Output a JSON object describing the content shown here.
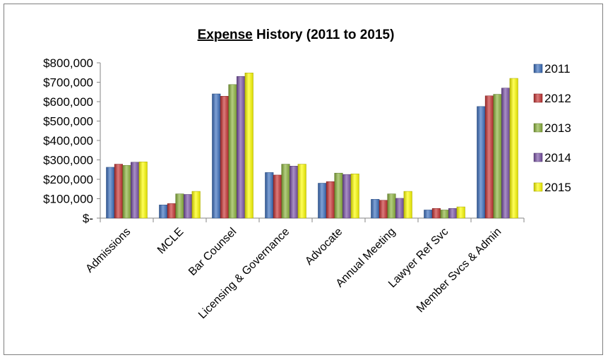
{
  "chart_data": {
    "type": "bar",
    "title_prefix": "Expense",
    "title_rest": " History (2011 to 2015)",
    "categories": [
      "Admissions",
      "MCLE",
      "Bar Counsel",
      "Licensing & Governance",
      "Advocate",
      "Annual Meeting",
      "Lawyer Ref Svc",
      "Member Svcs & Admin"
    ],
    "y_tick_labels": [
      "$-",
      "$100,000",
      "$200,000",
      "$300,000",
      "$400,000",
      "$500,000",
      "$600,000",
      "$700,000",
      "$800,000"
    ],
    "ylim": [
      0,
      800000
    ],
    "legend_position": "right",
    "grid": false,
    "series": [
      {
        "name": "2011",
        "color": "#3a6fbf",
        "values": [
          262000,
          68000,
          640000,
          235000,
          180000,
          97000,
          42000,
          575000
        ]
      },
      {
        "name": "2012",
        "color": "#c83232",
        "values": [
          278000,
          75000,
          628000,
          222000,
          188000,
          92000,
          50000,
          630000
        ]
      },
      {
        "name": "2013",
        "color": "#8cb43c",
        "values": [
          272000,
          125000,
          688000,
          278000,
          232000,
          125000,
          42000,
          638000
        ]
      },
      {
        "name": "2014",
        "color": "#7a52a8",
        "values": [
          288000,
          122000,
          730000,
          268000,
          225000,
          102000,
          50000,
          670000
        ]
      },
      {
        "name": "2015",
        "color": "#ffff00",
        "values": [
          290000,
          138000,
          748000,
          278000,
          228000,
          138000,
          58000,
          720000
        ]
      }
    ]
  }
}
